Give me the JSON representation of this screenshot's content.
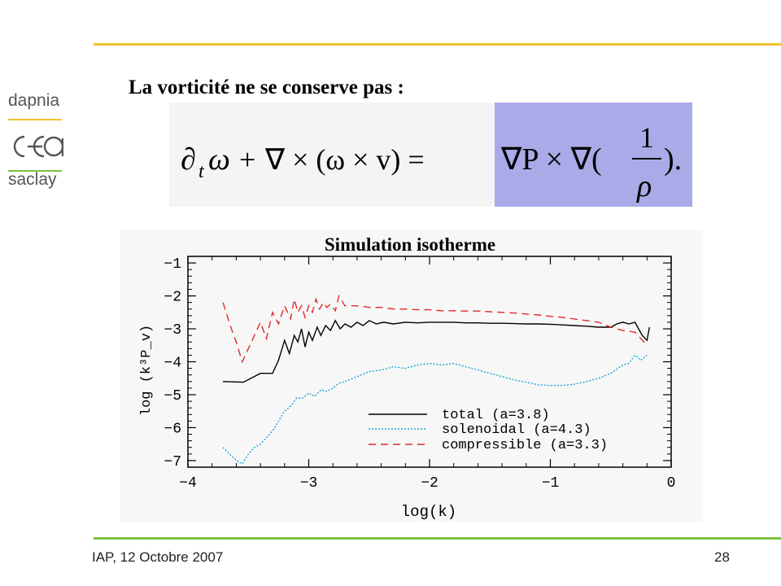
{
  "logo": {
    "top_text": "dapnia",
    "middle_text": "cea",
    "bottom_text": "saclay"
  },
  "heading": "La vorticité ne se conserve pas :",
  "equation": {
    "lhs_d": "∂",
    "lhs_t": "t",
    "lhs_omega": "ω",
    "lhs_plus": "+",
    "lhs_curl": "∇ × (ω × v) =",
    "rhs_gradP": "∇P × ∇(",
    "rhs_num": "1",
    "rhs_den": "ρ",
    "rhs_close": ")."
  },
  "footer": {
    "left": "IAP, 12 Octobre 2007",
    "page": "28"
  },
  "colors": {
    "top_rule": "#f2c230",
    "bottom_rule": "#7cc242",
    "highlight": "#aaaae8"
  },
  "chart_data": {
    "type": "line",
    "title": "Simulation isotherme",
    "xlabel": "log(k)",
    "ylabel": "log (k³P_v)",
    "xlim": [
      -4,
      0
    ],
    "ylim": [
      -7.2,
      -0.8
    ],
    "xticks": [
      "−4",
      "−3",
      "−2",
      "−1",
      "0"
    ],
    "yticks": [
      "−1",
      "−2",
      "−3",
      "−4",
      "−5",
      "−6",
      "−7"
    ],
    "legend_position": "bottom-right",
    "series": [
      {
        "name": "total (a=3.8)",
        "color": "#000000",
        "dash": "solid",
        "x": [
          -3.71,
          -3.54,
          -3.4,
          -3.3,
          -3.25,
          -3.2,
          -3.16,
          -3.12,
          -3.09,
          -3.06,
          -3.03,
          -3.0,
          -2.97,
          -2.93,
          -2.9,
          -2.86,
          -2.82,
          -2.78,
          -2.74,
          -2.7,
          -2.65,
          -2.6,
          -2.55,
          -2.5,
          -2.44,
          -2.38,
          -2.3,
          -2.2,
          -2.1,
          -2.0,
          -1.9,
          -1.8,
          -1.7,
          -1.6,
          -1.5,
          -1.4,
          -1.3,
          -1.2,
          -1.1,
          -1.0,
          -0.9,
          -0.8,
          -0.7,
          -0.6,
          -0.5,
          -0.45,
          -0.4,
          -0.35,
          -0.3,
          -0.27,
          -0.24,
          -0.2,
          -0.18
        ],
        "y": [
          -4.6,
          -4.62,
          -4.35,
          -4.35,
          -3.95,
          -3.35,
          -3.75,
          -3.2,
          -3.4,
          -3.0,
          -3.55,
          -3.1,
          -3.35,
          -2.95,
          -3.2,
          -2.9,
          -3.05,
          -2.75,
          -3.0,
          -2.85,
          -2.95,
          -2.8,
          -2.9,
          -2.75,
          -2.85,
          -2.8,
          -2.85,
          -2.8,
          -2.82,
          -2.8,
          -2.8,
          -2.8,
          -2.82,
          -2.82,
          -2.83,
          -2.83,
          -2.84,
          -2.85,
          -2.85,
          -2.86,
          -2.88,
          -2.9,
          -2.92,
          -2.95,
          -2.95,
          -2.85,
          -2.8,
          -2.85,
          -2.8,
          -3.0,
          -3.2,
          -3.35,
          -2.95
        ]
      },
      {
        "name": "solenoidal (a=4.3)",
        "color": "#1aa6d8",
        "dash": "dotted",
        "x": [
          -3.71,
          -3.6,
          -3.55,
          -3.5,
          -3.45,
          -3.4,
          -3.3,
          -3.2,
          -3.15,
          -3.1,
          -3.05,
          -3.0,
          -2.95,
          -2.9,
          -2.85,
          -2.8,
          -2.75,
          -2.7,
          -2.6,
          -2.5,
          -2.4,
          -2.3,
          -2.2,
          -2.1,
          -2.0,
          -1.9,
          -1.8,
          -1.7,
          -1.6,
          -1.5,
          -1.4,
          -1.3,
          -1.2,
          -1.1,
          -1.0,
          -0.9,
          -0.8,
          -0.7,
          -0.6,
          -0.5,
          -0.4,
          -0.35,
          -0.3,
          -0.25,
          -0.2
        ],
        "y": [
          -6.6,
          -7.0,
          -7.1,
          -6.8,
          -6.6,
          -6.5,
          -6.1,
          -5.5,
          -5.35,
          -5.1,
          -5.1,
          -4.95,
          -5.05,
          -4.85,
          -4.9,
          -4.8,
          -4.65,
          -4.6,
          -4.45,
          -4.3,
          -4.25,
          -4.15,
          -4.2,
          -4.1,
          -4.05,
          -4.1,
          -4.05,
          -4.15,
          -4.25,
          -4.35,
          -4.45,
          -4.55,
          -4.62,
          -4.7,
          -4.72,
          -4.72,
          -4.68,
          -4.6,
          -4.5,
          -4.35,
          -4.1,
          -4.05,
          -3.8,
          -3.95,
          -3.8
        ]
      },
      {
        "name": "compressible (a=3.3)",
        "color": "#e02a2a",
        "dash": "dashed",
        "x": [
          -3.71,
          -3.65,
          -3.6,
          -3.55,
          -3.5,
          -3.45,
          -3.4,
          -3.35,
          -3.3,
          -3.25,
          -3.2,
          -3.15,
          -3.12,
          -3.09,
          -3.06,
          -3.03,
          -3.0,
          -2.97,
          -2.94,
          -2.91,
          -2.88,
          -2.85,
          -2.82,
          -2.78,
          -2.75,
          -2.7,
          -2.6,
          -2.5,
          -2.4,
          -2.3,
          -2.2,
          -2.1,
          -2.0,
          -1.9,
          -1.8,
          -1.7,
          -1.6,
          -1.5,
          -1.4,
          -1.3,
          -1.2,
          -1.1,
          -1.0,
          -0.9,
          -0.8,
          -0.7,
          -0.6,
          -0.5,
          -0.4,
          -0.3,
          -0.25,
          -0.2
        ],
        "y": [
          -2.2,
          -2.9,
          -3.4,
          -4.0,
          -3.6,
          -3.2,
          -2.8,
          -3.3,
          -2.5,
          -2.85,
          -2.3,
          -2.7,
          -2.1,
          -2.5,
          -2.3,
          -2.65,
          -2.3,
          -2.5,
          -2.1,
          -2.4,
          -2.2,
          -2.35,
          -2.25,
          -2.45,
          -2.0,
          -2.3,
          -2.3,
          -2.35,
          -2.35,
          -2.4,
          -2.4,
          -2.42,
          -2.42,
          -2.45,
          -2.45,
          -2.46,
          -2.46,
          -2.48,
          -2.5,
          -2.52,
          -2.55,
          -2.58,
          -2.62,
          -2.65,
          -2.7,
          -2.75,
          -2.8,
          -2.95,
          -3.05,
          -3.1,
          -3.3,
          -3.5
        ]
      }
    ]
  }
}
